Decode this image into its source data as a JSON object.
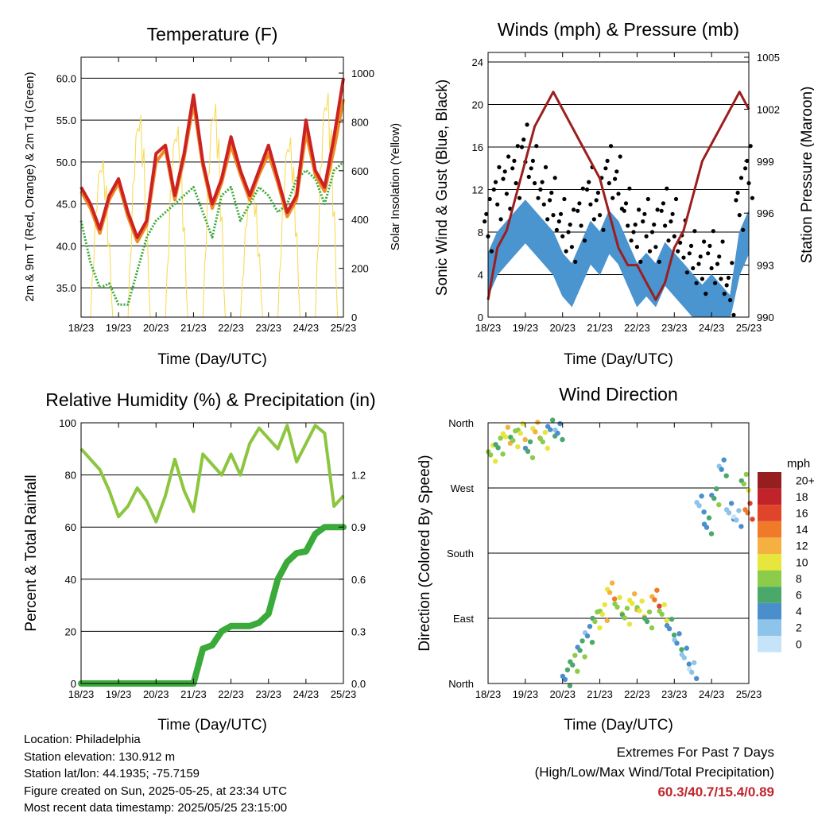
{
  "charts": [
    {
      "id": "temperature",
      "title": "Temperature (F)",
      "xlabel": "Time (Day/UTC)",
      "ylabel_left": "2m & 9m T (Red, Orange) & 2m Td (Green)",
      "ylabel_right": "Solar Insolation (Yellow)",
      "xticks": [
        "18/23",
        "19/23",
        "20/23",
        "21/23",
        "22/23",
        "23/23",
        "24/23",
        "25/23"
      ],
      "yticks_left": [
        "35.0",
        "40.0",
        "45.0",
        "50.0",
        "55.0",
        "60.0"
      ],
      "yticks_right": [
        "0",
        "200",
        "400",
        "600",
        "800",
        "1000"
      ]
    },
    {
      "id": "winds",
      "title": "Winds (mph) & Pressure (mb)",
      "xlabel": "Time (Day/UTC)",
      "ylabel_left": "Sonic Wind & Gust (Blue, Black)",
      "ylabel_right": "Station Pressure (Maroon)",
      "xticks": [
        "18/23",
        "19/23",
        "20/23",
        "21/23",
        "22/23",
        "23/23",
        "24/23",
        "25/23"
      ],
      "yticks_left": [
        "0",
        "4",
        "8",
        "12",
        "16",
        "20",
        "24"
      ],
      "yticks_right": [
        "990",
        "993",
        "996",
        "999",
        "1002",
        "1005"
      ]
    },
    {
      "id": "humidity",
      "title": "Relative Humidity (%) & Precipitation (in)",
      "xlabel": "Time (Day/UTC)",
      "ylabel_left": "Percent & Total Rainfall",
      "xticks": [
        "18/23",
        "19/23",
        "20/23",
        "21/23",
        "22/23",
        "23/23",
        "24/23",
        "25/23"
      ],
      "yticks_left": [
        "0",
        "20",
        "40",
        "60",
        "80",
        "100"
      ],
      "yticks_right": [
        "0.0",
        "0.3",
        "0.6",
        "0.9",
        "1.2"
      ]
    },
    {
      "id": "direction",
      "title": "Wind Direction",
      "xlabel": "Time (Day/UTC)",
      "ylabel_left": "Direction (Colored By Speed)",
      "xticks": [
        "18/23",
        "19/23",
        "20/23",
        "21/23",
        "22/23",
        "23/23",
        "24/23",
        "25/23"
      ],
      "yticks_left": [
        "North",
        "East",
        "South",
        "West",
        "North"
      ],
      "legend_title": "mph",
      "legend_labels": [
        "0",
        "2",
        "4",
        "6",
        "8",
        "10",
        "12",
        "14",
        "16",
        "18",
        "20+"
      ],
      "legend_colors": [
        "#c6e4f8",
        "#8ec3ea",
        "#4a8fcc",
        "#4aa86a",
        "#8ccc4a",
        "#e6e63c",
        "#f5b042",
        "#f07a2a",
        "#e0442a",
        "#c0242a",
        "#961e1e"
      ]
    }
  ],
  "chart_data": [
    {
      "type": "line",
      "title": "Temperature (F)",
      "x": [
        0,
        0.25,
        0.5,
        0.75,
        1,
        1.25,
        1.5,
        1.75,
        2,
        2.25,
        2.5,
        2.75,
        3,
        3.25,
        3.5,
        3.75,
        4,
        4.25,
        4.5,
        4.75,
        5,
        5.25,
        5.5,
        5.75,
        6,
        6.25,
        6.5,
        6.75,
        7
      ],
      "xlim": [
        0,
        7
      ],
      "ylim": [
        31.5,
        62.5
      ],
      "series": [
        {
          "name": "2m T",
          "color": "#cc2222",
          "values": [
            47,
            45,
            42,
            46,
            48,
            44,
            41,
            43,
            51,
            52,
            46,
            51,
            58,
            50,
            45,
            48,
            53,
            49,
            46,
            49,
            52,
            48,
            44,
            46,
            55,
            49,
            47,
            53,
            60
          ]
        },
        {
          "name": "9m T",
          "color": "#f08a24",
          "values": [
            46.5,
            44.5,
            41.5,
            45.5,
            47.5,
            43.5,
            40.5,
            42.5,
            50,
            51.5,
            45.5,
            50.5,
            57,
            49.5,
            44.5,
            47.5,
            52,
            48.5,
            45.5,
            48.5,
            51,
            47.5,
            43.5,
            45.5,
            53.5,
            48.5,
            46.5,
            51.5,
            57.5
          ]
        },
        {
          "name": "2m Td",
          "color": "#3aaa3a",
          "values": [
            43,
            38,
            35,
            35.5,
            33,
            33,
            37,
            41,
            43,
            44,
            45,
            46,
            47,
            44,
            41,
            46,
            47,
            43,
            45,
            47,
            46,
            44,
            45,
            48,
            49,
            48,
            45,
            49,
            50
          ]
        },
        {
          "name": "Solar Insolation",
          "color": "#f7d94c",
          "axis": "right",
          "ylim_right": [
            0,
            1000
          ]
        }
      ]
    },
    {
      "type": "scatter",
      "title": "Winds (mph) & Pressure (mb)",
      "x": [
        0,
        0.25,
        0.5,
        0.75,
        1,
        1.25,
        1.5,
        1.75,
        2,
        2.25,
        2.5,
        2.75,
        3,
        3.25,
        3.5,
        3.75,
        4,
        4.25,
        4.5,
        4.75,
        5,
        5.25,
        5.5,
        5.75,
        6,
        6.25,
        6.5,
        6.75,
        7
      ],
      "xlim": [
        0,
        7
      ],
      "ylim": [
        0,
        24
      ],
      "series": [
        {
          "name": "Sonic Wind",
          "color": "#4a94cf",
          "values": [
            6,
            8,
            9,
            10,
            11,
            10,
            9,
            8,
            6,
            5,
            7,
            9,
            8,
            10,
            9,
            7,
            5,
            6,
            5,
            7,
            6,
            5,
            4,
            3,
            4,
            3,
            2,
            8,
            10
          ]
        },
        {
          "name": "Gust",
          "color": "#000000",
          "values": [
            10,
            13,
            14,
            15,
            17,
            15,
            13,
            12,
            10,
            9,
            11,
            13,
            12,
            15,
            14,
            11,
            9,
            10,
            9,
            11,
            10,
            8,
            7,
            6,
            7,
            6,
            4,
            12,
            15
          ]
        },
        {
          "name": "Station Pressure",
          "color": "#9c1e1e",
          "axis": "right",
          "ylim_right": [
            990,
            1005
          ],
          "values": [
            991,
            994,
            995,
            997,
            999,
            1001,
            1002,
            1003,
            1002,
            1001,
            1000,
            999,
            998,
            996,
            994,
            993,
            993,
            992,
            991,
            992,
            994,
            995,
            997,
            999,
            1000,
            1001,
            1002,
            1003,
            1002
          ]
        }
      ]
    },
    {
      "type": "line",
      "title": "Relative Humidity (%) & Precipitation (in)",
      "x": [
        0,
        0.25,
        0.5,
        0.75,
        1,
        1.25,
        1.5,
        1.75,
        2,
        2.25,
        2.5,
        2.75,
        3,
        3.25,
        3.5,
        3.75,
        4,
        4.25,
        4.5,
        4.75,
        5,
        5.25,
        5.5,
        5.75,
        6,
        6.25,
        6.5,
        6.75,
        7
      ],
      "xlim": [
        0,
        7
      ],
      "ylim": [
        0,
        100
      ],
      "series": [
        {
          "name": "Relative Humidity",
          "color": "#8cc63f",
          "values": [
            90,
            86,
            82,
            74,
            64,
            68,
            75,
            70,
            62,
            72,
            86,
            74,
            66,
            88,
            84,
            80,
            88,
            80,
            92,
            98,
            94,
            90,
            99,
            85,
            92,
            99,
            96,
            68,
            72
          ]
        },
        {
          "name": "Total Rainfall",
          "color": "#3aaa3a",
          "axis": "right",
          "ylim_right": [
            0,
            1.5
          ],
          "values": [
            0,
            0,
            0,
            0,
            0,
            0,
            0,
            0,
            0,
            0,
            0,
            0,
            0,
            0.2,
            0.22,
            0.3,
            0.33,
            0.33,
            0.33,
            0.35,
            0.4,
            0.6,
            0.7,
            0.75,
            0.76,
            0.86,
            0.9,
            0.9,
            0.9
          ]
        }
      ]
    },
    {
      "type": "scatter",
      "title": "Wind Direction",
      "xlim": [
        0,
        7
      ],
      "ylim": [
        0,
        360
      ],
      "series": [
        {
          "name": "Direction",
          "points": [
            [
              0.1,
              320,
              9
            ],
            [
              0.3,
              330,
              7
            ],
            [
              0.5,
              345,
              11
            ],
            [
              0.7,
              340,
              8
            ],
            [
              0.9,
              350,
              10
            ],
            [
              1.1,
              325,
              6
            ],
            [
              1.3,
              352,
              12
            ],
            [
              1.5,
              338,
              9
            ],
            [
              1.7,
              355,
              5
            ],
            [
              1.9,
              350,
              4
            ],
            [
              2.1,
              10,
              5
            ],
            [
              2.3,
              30,
              7
            ],
            [
              2.5,
              50,
              6
            ],
            [
              2.7,
              70,
              4
            ],
            [
              2.9,
              90,
              8
            ],
            [
              3.1,
              100,
              10
            ],
            [
              3.3,
              130,
              12
            ],
            [
              3.5,
              110,
              9
            ],
            [
              3.7,
              95,
              8
            ],
            [
              3.9,
              115,
              11
            ],
            [
              4.1,
              105,
              10
            ],
            [
              4.3,
              90,
              7
            ],
            [
              4.5,
              120,
              14
            ],
            [
              4.7,
              100,
              9
            ],
            [
              4.9,
              80,
              5
            ],
            [
              5.1,
              60,
              4
            ],
            [
              5.3,
              40,
              3
            ],
            [
              5.5,
              20,
              2
            ],
            [
              5.7,
              250,
              3
            ],
            [
              5.9,
              220,
              5
            ],
            [
              6.1,
              260,
              6
            ],
            [
              6.3,
              300,
              4
            ],
            [
              6.5,
              240,
              3
            ],
            [
              6.7,
              230,
              2
            ],
            [
              6.9,
              280,
              8
            ],
            [
              7,
              240,
              15
            ]
          ]
        }
      ]
    }
  ],
  "info": {
    "location": "Location: Philadelphia",
    "elevation": "Station elevation: 130.912 m",
    "latlon": "Station lat/lon: 44.1935; -75.7159",
    "created": "Figure created on Sun, 2025-05-25, at 23:34 UTC",
    "timestamp": "Most recent data timestamp: 2025/05/25 23:15:00"
  },
  "extremes": {
    "title": "Extremes For Past 7 Days",
    "subtitle": "(High/Low/Max Wind/Total Precipitation)",
    "values": "60.3/40.7/15.4/0.89"
  }
}
